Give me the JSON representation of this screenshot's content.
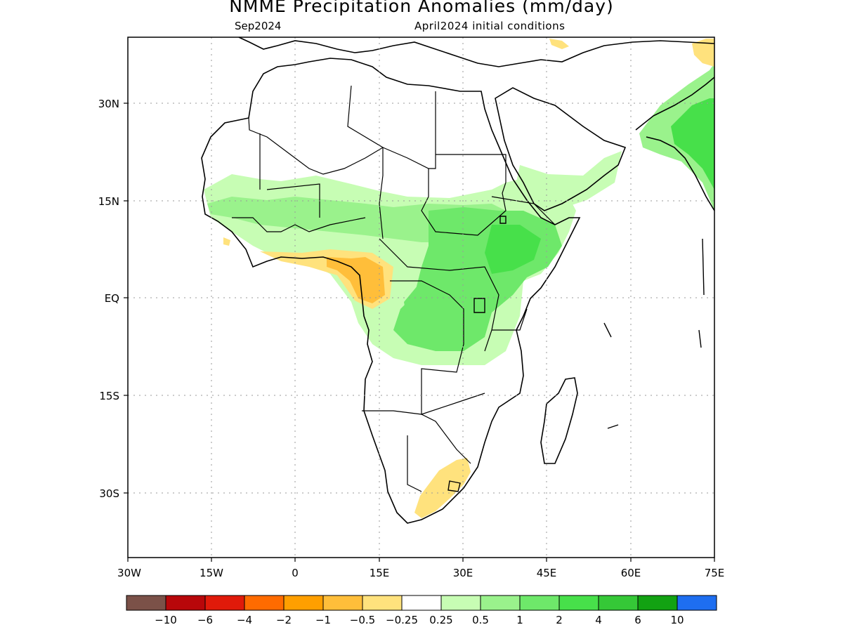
{
  "title": "NMME Precipitation Anomalies (mm/day)",
  "subtitle_left": "Sep2024",
  "subtitle_right": "April2024 initial conditions",
  "lat_ticks": [
    "30N",
    "15N",
    "EQ",
    "15S",
    "30S"
  ],
  "lon_ticks": [
    "30W",
    "15W",
    "0",
    "15E",
    "30E",
    "45E",
    "60E",
    "75E"
  ],
  "colorbar": {
    "labels": [
      "−10",
      "−6",
      "−4",
      "−2",
      "−1",
      "−0.5",
      "−0.25",
      "0.25",
      "0.5",
      "1",
      "2",
      "4",
      "6",
      "10"
    ],
    "colors": [
      "#7b5148",
      "#b8070a",
      "#e01a0a",
      "#ff6b00",
      "#ff9f00",
      "#ffbe3a",
      "#ffe27d",
      "#ffffff",
      "#c7fdb4",
      "#9af28c",
      "#6ee86a",
      "#47e04a",
      "#35c837",
      "#12a212",
      "#1e6ef0"
    ]
  },
  "map_extent": {
    "lon": [
      -30,
      75
    ],
    "lat": [
      -40,
      40
    ]
  },
  "grid": "dotted",
  "anomaly_regions": [
    {
      "region": "Sahel belt",
      "category": "0.5 to 1"
    },
    {
      "region": "Ethiopian highlands",
      "category": "1 to 2"
    },
    {
      "region": "Central Africa / Congo",
      "category": "0.5 to 1"
    },
    {
      "region": "Western India",
      "category": "1 to 2"
    },
    {
      "region": "Cameroon / Gulf of Guinea",
      "category": "-1 to -0.5"
    },
    {
      "region": "Southern South Africa",
      "category": "-0.5 to -0.25"
    },
    {
      "region": "Northeast Pakistan",
      "category": "-0.5 to -0.25"
    }
  ]
}
